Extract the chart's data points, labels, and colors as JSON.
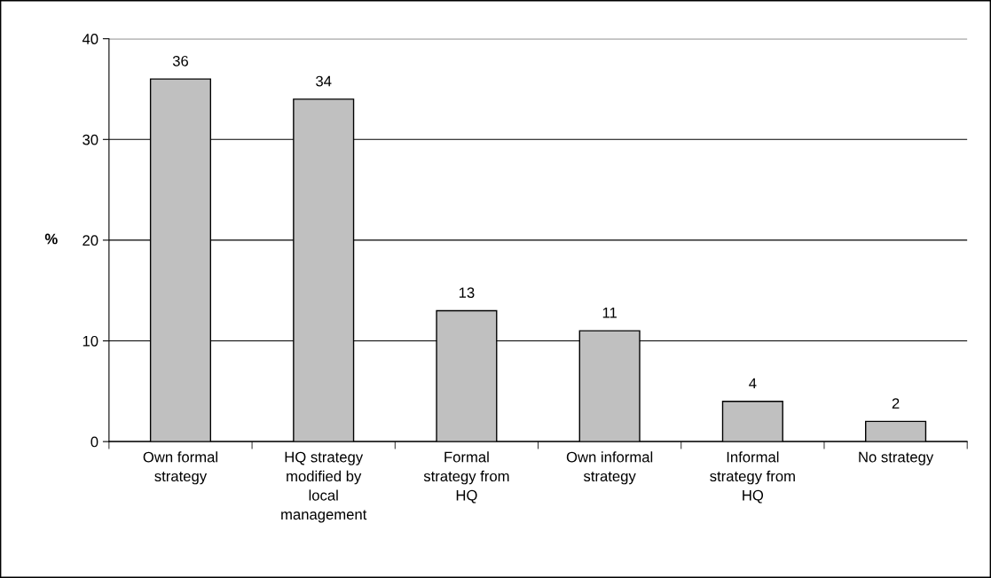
{
  "chart_data": {
    "type": "bar",
    "categories": [
      "Own formal strategy",
      "HQ strategy modified by local management",
      "Formal strategy from HQ",
      "Own informal strategy",
      "Informal strategy from HQ",
      "No strategy"
    ],
    "values": [
      36,
      34,
      13,
      11,
      4,
      2
    ],
    "color": "#c0c0c0",
    "ylabel": "%",
    "ylim": [
      0,
      40
    ],
    "yticks": [
      0,
      10,
      20,
      30,
      40
    ],
    "grid": "y",
    "data_labels": true
  }
}
